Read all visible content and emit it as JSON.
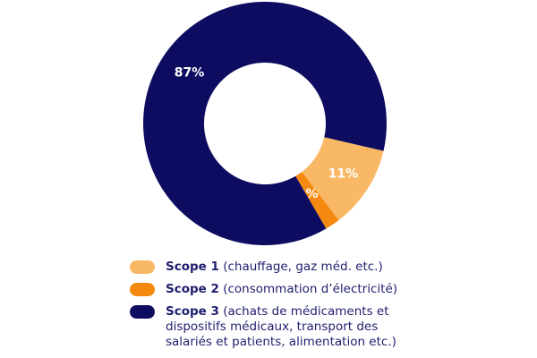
{
  "chart_data": {
    "type": "pie",
    "donut": true,
    "slices": [
      {
        "label": "Scope 1",
        "value": 11,
        "display": "11%",
        "color": "#f9b865",
        "description": "(chauffage, gaz méd. etc.)"
      },
      {
        "label": "Scope 2",
        "value": 2,
        "display": "2%",
        "color": "#f5890f",
        "description": "(consommation d’électricité)"
      },
      {
        "label": "Scope 3",
        "value": 87,
        "display": "87%",
        "color": "#0d0c61",
        "description": "(achats de médicaments et dispositifs médicaux, transport des salariés et patients, alimentation etc.)"
      }
    ],
    "legend_position": "bottom"
  }
}
